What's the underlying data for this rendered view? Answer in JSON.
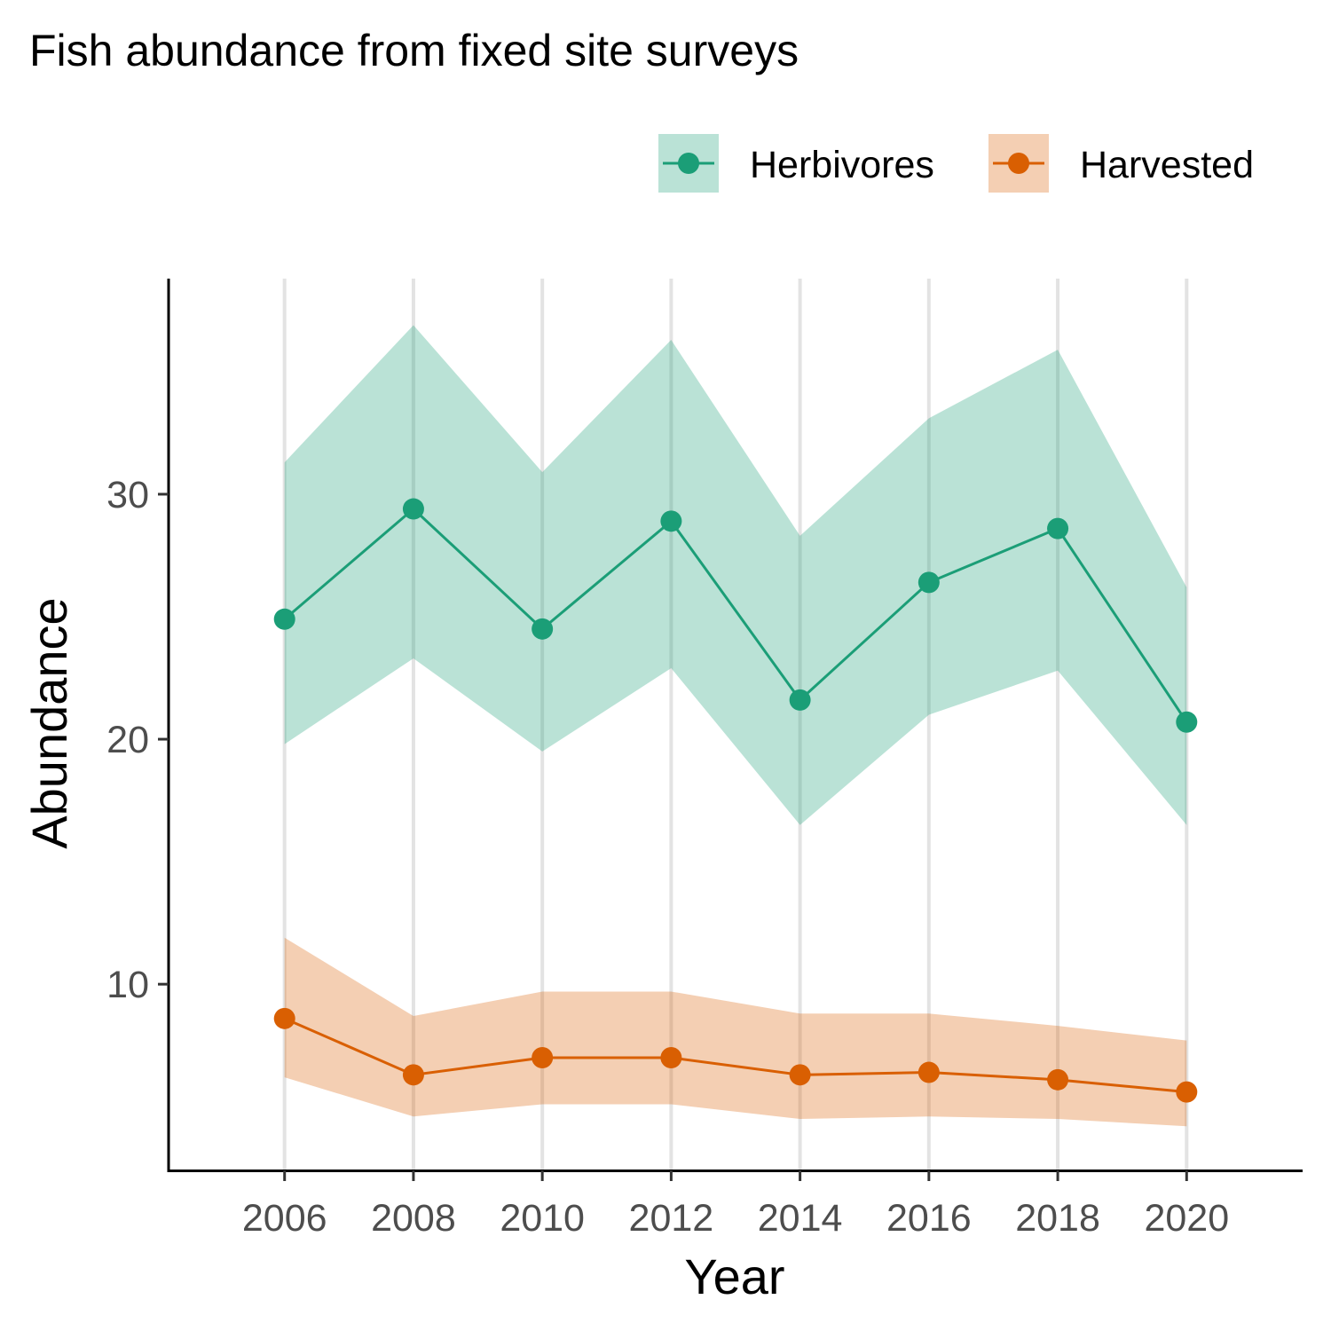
{
  "chart_data": {
    "type": "line",
    "title": "Fish abundance from fixed site surveys",
    "xlabel": "Year",
    "ylabel": "Abundance",
    "x": [
      2006,
      2008,
      2010,
      2012,
      2014,
      2016,
      2018,
      2020
    ],
    "x_ticks": [
      "2006",
      "2008",
      "2010",
      "2012",
      "2014",
      "2016",
      "2018",
      "2020"
    ],
    "y_ticks": [
      "10",
      "20",
      "30"
    ],
    "xlim": [
      2004.2,
      2021.8
    ],
    "ylim": [
      2.4,
      38.8
    ],
    "grid": "vertical major lines",
    "legend_position": "top-right",
    "series": [
      {
        "name": "Herbivores",
        "color": "#1b9e77",
        "values": [
          24.9,
          29.4,
          24.5,
          28.9,
          21.6,
          26.4,
          28.6,
          20.7
        ],
        "lower": [
          19.8,
          23.3,
          19.5,
          22.9,
          16.5,
          21.0,
          22.8,
          16.5
        ],
        "upper": [
          31.3,
          36.9,
          30.9,
          36.3,
          28.3,
          33.1,
          35.9,
          26.2
        ]
      },
      {
        "name": "Harvested",
        "color": "#d95f02",
        "values": [
          8.6,
          6.3,
          7.0,
          7.0,
          6.3,
          6.4,
          6.1,
          5.6
        ],
        "lower": [
          6.2,
          4.6,
          5.1,
          5.1,
          4.5,
          4.6,
          4.5,
          4.2
        ],
        "upper": [
          11.9,
          8.7,
          9.7,
          9.7,
          8.8,
          8.8,
          8.3,
          7.7
        ]
      }
    ]
  }
}
